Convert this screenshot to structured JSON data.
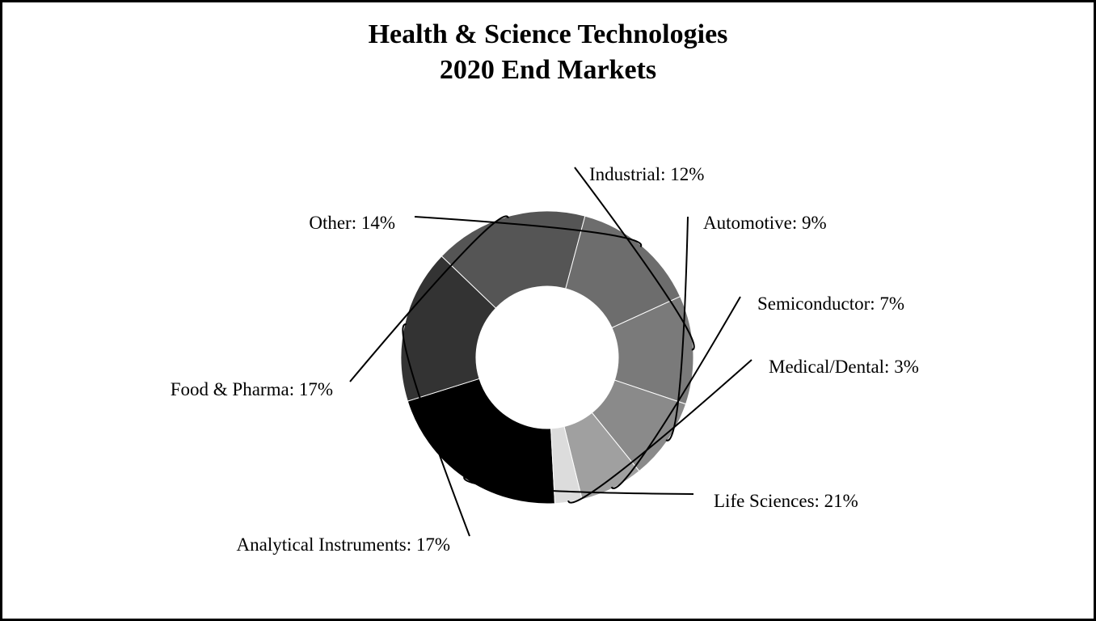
{
  "chart_data": {
    "type": "pie",
    "variant": "donut",
    "title": [
      "Health & Science Technologies",
      "2020 End Markets"
    ],
    "legend": "none (labels on slices)",
    "slices": [
      {
        "label": "Life Sciences: 21%",
        "name": "Life Sciences",
        "value": 21,
        "color": "#000000"
      },
      {
        "label": "Analytical Instruments: 17%",
        "name": "Analytical Instruments",
        "value": 17,
        "color": "#333333"
      },
      {
        "label": "Food & Pharma: 17%",
        "name": "Food & Pharma",
        "value": 17,
        "color": "#555555"
      },
      {
        "label": "Other: 14%",
        "name": "Other",
        "value": 14,
        "color": "#6d6d6d"
      },
      {
        "label": "Industrial: 12%",
        "name": "Industrial",
        "value": 12,
        "color": "#7a7a7a"
      },
      {
        "label": "Automotive: 9%",
        "name": "Automotive",
        "value": 9,
        "color": "#8a8a8a"
      },
      {
        "label": "Semiconductor: 7%",
        "name": "Semiconductor",
        "value": 7,
        "color": "#a0a0a0"
      },
      {
        "label": "Medical/Dental: 3%",
        "name": "Medical/Dental",
        "value": 3,
        "color": "#dcdcdc"
      }
    ]
  }
}
